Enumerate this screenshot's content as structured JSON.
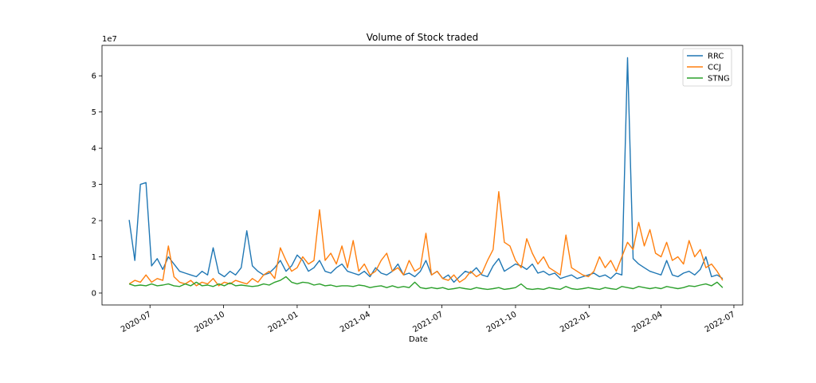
{
  "chart_data": {
    "type": "line",
    "title": "Volume of Stock traded",
    "xlabel": "Date",
    "ylabel": "",
    "y_offset_label": "1e7",
    "xlim": [
      "2020-05-02",
      "2022-07-12"
    ],
    "ylim": [
      -0.33,
      6.84
    ],
    "yticks": [
      0,
      1,
      2,
      3,
      4,
      5,
      6
    ],
    "xticks": [
      "2020-07",
      "2020-10",
      "2021-01",
      "2021-04",
      "2021-07",
      "2021-10",
      "2022-01",
      "2022-04",
      "2022-07"
    ],
    "grid": false,
    "legend_position": "top-right",
    "x": [
      "2020-06-05",
      "2020-06-12",
      "2020-06-19",
      "2020-06-26",
      "2020-07-03",
      "2020-07-10",
      "2020-07-17",
      "2020-07-24",
      "2020-07-31",
      "2020-08-07",
      "2020-08-14",
      "2020-08-21",
      "2020-08-28",
      "2020-09-04",
      "2020-09-11",
      "2020-09-18",
      "2020-09-25",
      "2020-10-02",
      "2020-10-09",
      "2020-10-16",
      "2020-10-23",
      "2020-10-30",
      "2020-11-06",
      "2020-11-13",
      "2020-11-20",
      "2020-11-27",
      "2020-12-04",
      "2020-12-11",
      "2020-12-18",
      "2020-12-25",
      "2021-01-01",
      "2021-01-08",
      "2021-01-15",
      "2021-01-22",
      "2021-01-29",
      "2021-02-05",
      "2021-02-12",
      "2021-02-19",
      "2021-02-26",
      "2021-03-05",
      "2021-03-12",
      "2021-03-19",
      "2021-03-26",
      "2021-04-02",
      "2021-04-09",
      "2021-04-16",
      "2021-04-23",
      "2021-04-30",
      "2021-05-07",
      "2021-05-14",
      "2021-05-21",
      "2021-05-28",
      "2021-06-04",
      "2021-06-11",
      "2021-06-18",
      "2021-06-25",
      "2021-07-02",
      "2021-07-09",
      "2021-07-16",
      "2021-07-23",
      "2021-07-30",
      "2021-08-06",
      "2021-08-13",
      "2021-08-20",
      "2021-08-27",
      "2021-09-03",
      "2021-09-10",
      "2021-09-17",
      "2021-09-24",
      "2021-10-01",
      "2021-10-08",
      "2021-10-15",
      "2021-10-22",
      "2021-10-29",
      "2021-11-05",
      "2021-11-12",
      "2021-11-19",
      "2021-11-26",
      "2021-12-03",
      "2021-12-10",
      "2021-12-17",
      "2021-12-24",
      "2021-12-31",
      "2022-01-07",
      "2022-01-14",
      "2022-01-21",
      "2022-01-28",
      "2022-02-04",
      "2022-02-11",
      "2022-02-18",
      "2022-02-25",
      "2022-03-04",
      "2022-03-11",
      "2022-03-18",
      "2022-03-25",
      "2022-04-01",
      "2022-04-08",
      "2022-04-15",
      "2022-04-22",
      "2022-04-29",
      "2022-05-06",
      "2022-05-13",
      "2022-05-20",
      "2022-05-27",
      "2022-06-03",
      "2022-06-10",
      "2022-06-17"
    ],
    "series": [
      {
        "name": "RRC",
        "color": "#1f77b4",
        "values": [
          2.02,
          0.9,
          3.0,
          3.05,
          0.75,
          0.95,
          0.65,
          1.0,
          0.8,
          0.6,
          0.55,
          0.5,
          0.45,
          0.6,
          0.5,
          1.25,
          0.55,
          0.45,
          0.6,
          0.5,
          0.7,
          1.72,
          0.75,
          0.6,
          0.5,
          0.55,
          0.7,
          0.9,
          0.6,
          0.75,
          1.05,
          0.9,
          0.6,
          0.7,
          0.9,
          0.6,
          0.55,
          0.7,
          0.8,
          0.6,
          0.55,
          0.5,
          0.6,
          0.45,
          0.7,
          0.55,
          0.5,
          0.6,
          0.8,
          0.5,
          0.55,
          0.45,
          0.6,
          0.9,
          0.5,
          0.6,
          0.4,
          0.5,
          0.3,
          0.45,
          0.6,
          0.55,
          0.7,
          0.5,
          0.45,
          0.75,
          0.95,
          0.6,
          0.7,
          0.8,
          0.75,
          0.65,
          0.8,
          0.55,
          0.6,
          0.5,
          0.55,
          0.4,
          0.45,
          0.5,
          0.4,
          0.45,
          0.5,
          0.55,
          0.45,
          0.5,
          0.4,
          0.55,
          0.5,
          6.5,
          0.95,
          0.8,
          0.7,
          0.6,
          0.55,
          0.5,
          0.9,
          0.5,
          0.45,
          0.55,
          0.6,
          0.5,
          0.65,
          1.0,
          0.45,
          0.5,
          0.4
        ]
      },
      {
        "name": "CCJ",
        "color": "#ff7f0e",
        "values": [
          0.25,
          0.35,
          0.3,
          0.5,
          0.3,
          0.4,
          0.35,
          1.3,
          0.45,
          0.3,
          0.25,
          0.35,
          0.2,
          0.3,
          0.25,
          0.4,
          0.2,
          0.3,
          0.25,
          0.35,
          0.3,
          0.25,
          0.4,
          0.3,
          0.5,
          0.6,
          0.4,
          1.25,
          0.9,
          0.6,
          0.7,
          1.0,
          0.8,
          0.9,
          2.3,
          0.9,
          1.1,
          0.8,
          1.3,
          0.7,
          1.45,
          0.6,
          0.8,
          0.5,
          0.6,
          0.9,
          1.1,
          0.6,
          0.7,
          0.5,
          0.9,
          0.6,
          0.7,
          1.65,
          0.5,
          0.6,
          0.4,
          0.35,
          0.5,
          0.3,
          0.4,
          0.6,
          0.45,
          0.55,
          0.9,
          1.2,
          2.8,
          1.4,
          1.3,
          0.9,
          0.7,
          1.5,
          1.1,
          0.8,
          1.0,
          0.7,
          0.6,
          0.5,
          1.6,
          0.7,
          0.6,
          0.5,
          0.45,
          0.6,
          1.0,
          0.7,
          0.9,
          0.6,
          1.0,
          1.4,
          1.2,
          1.95,
          1.3,
          1.75,
          1.1,
          1.0,
          1.4,
          0.9,
          1.0,
          0.8,
          1.45,
          1.0,
          1.2,
          0.7,
          0.8,
          0.6,
          0.35
        ]
      },
      {
        "name": "STNG",
        "color": "#2ca02c",
        "values": [
          0.25,
          0.2,
          0.22,
          0.2,
          0.25,
          0.2,
          0.22,
          0.25,
          0.2,
          0.18,
          0.25,
          0.2,
          0.3,
          0.2,
          0.22,
          0.18,
          0.25,
          0.2,
          0.28,
          0.2,
          0.22,
          0.2,
          0.18,
          0.2,
          0.25,
          0.22,
          0.3,
          0.35,
          0.45,
          0.3,
          0.25,
          0.3,
          0.28,
          0.22,
          0.25,
          0.2,
          0.22,
          0.18,
          0.2,
          0.2,
          0.18,
          0.22,
          0.2,
          0.15,
          0.18,
          0.2,
          0.15,
          0.2,
          0.15,
          0.18,
          0.15,
          0.3,
          0.15,
          0.12,
          0.15,
          0.12,
          0.15,
          0.1,
          0.12,
          0.15,
          0.12,
          0.1,
          0.15,
          0.12,
          0.1,
          0.12,
          0.15,
          0.1,
          0.12,
          0.15,
          0.25,
          0.12,
          0.1,
          0.12,
          0.1,
          0.15,
          0.12,
          0.1,
          0.18,
          0.12,
          0.1,
          0.12,
          0.15,
          0.12,
          0.1,
          0.15,
          0.12,
          0.1,
          0.18,
          0.15,
          0.12,
          0.18,
          0.15,
          0.12,
          0.15,
          0.12,
          0.18,
          0.15,
          0.12,
          0.15,
          0.2,
          0.18,
          0.22,
          0.25,
          0.2,
          0.3,
          0.15
        ]
      }
    ]
  }
}
